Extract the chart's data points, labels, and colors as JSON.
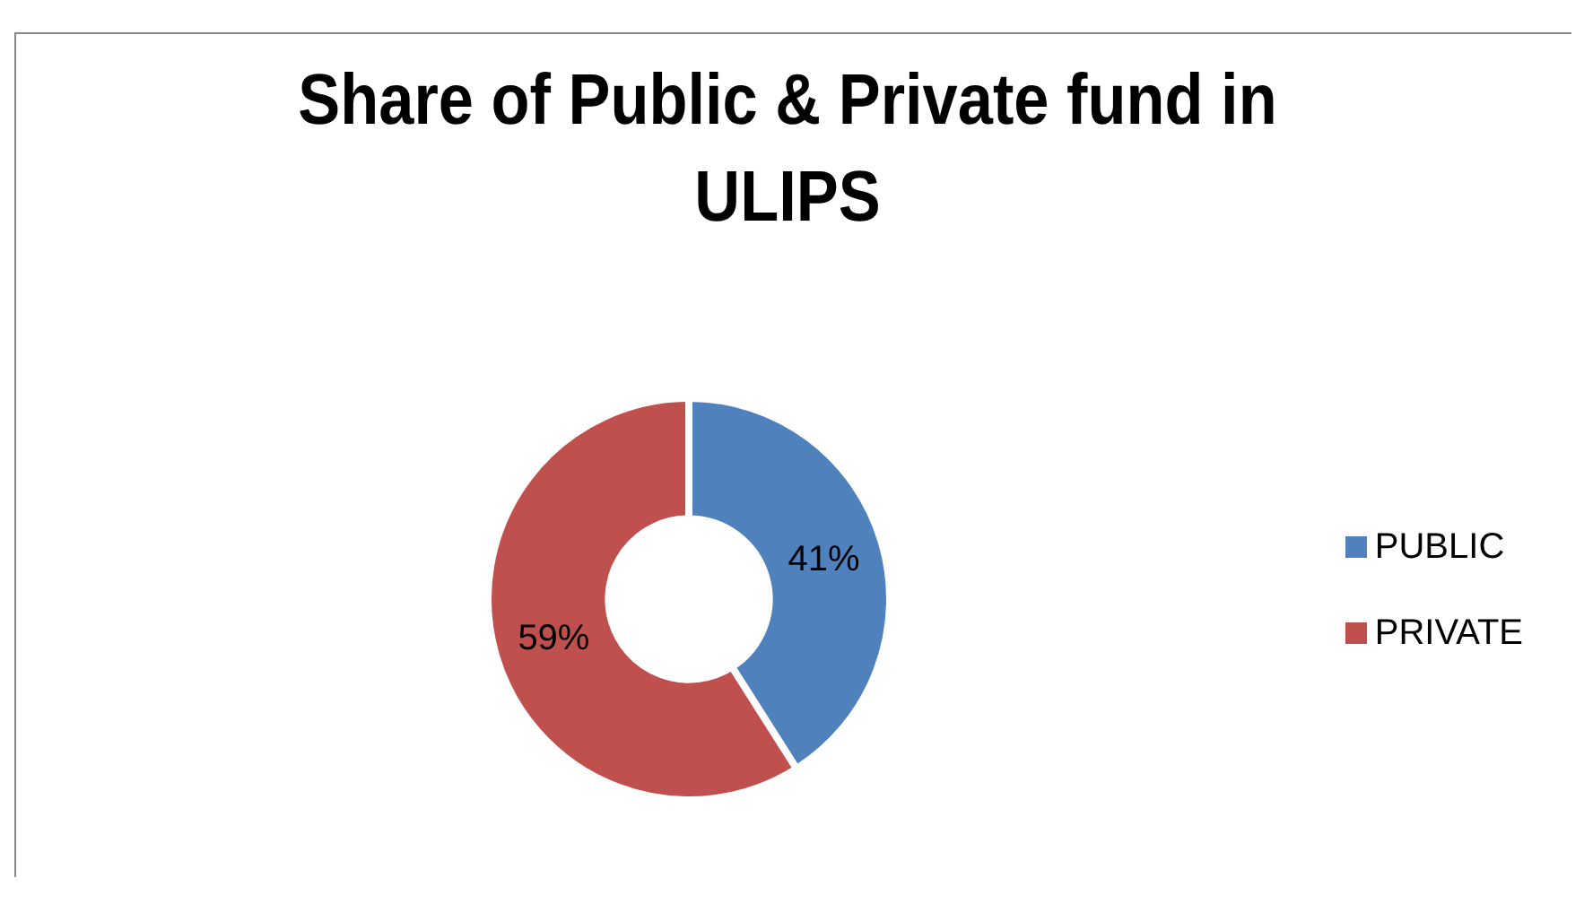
{
  "chart_data": {
    "type": "donut",
    "title": "Share of Public & Private fund in ULIPS",
    "categories": [
      "PUBLIC",
      "PRIVATE"
    ],
    "values": [
      41,
      59
    ],
    "colors": [
      "#4f81bd",
      "#c0504d"
    ],
    "value_labels": [
      "41%",
      "59%"
    ],
    "legend": "right"
  }
}
